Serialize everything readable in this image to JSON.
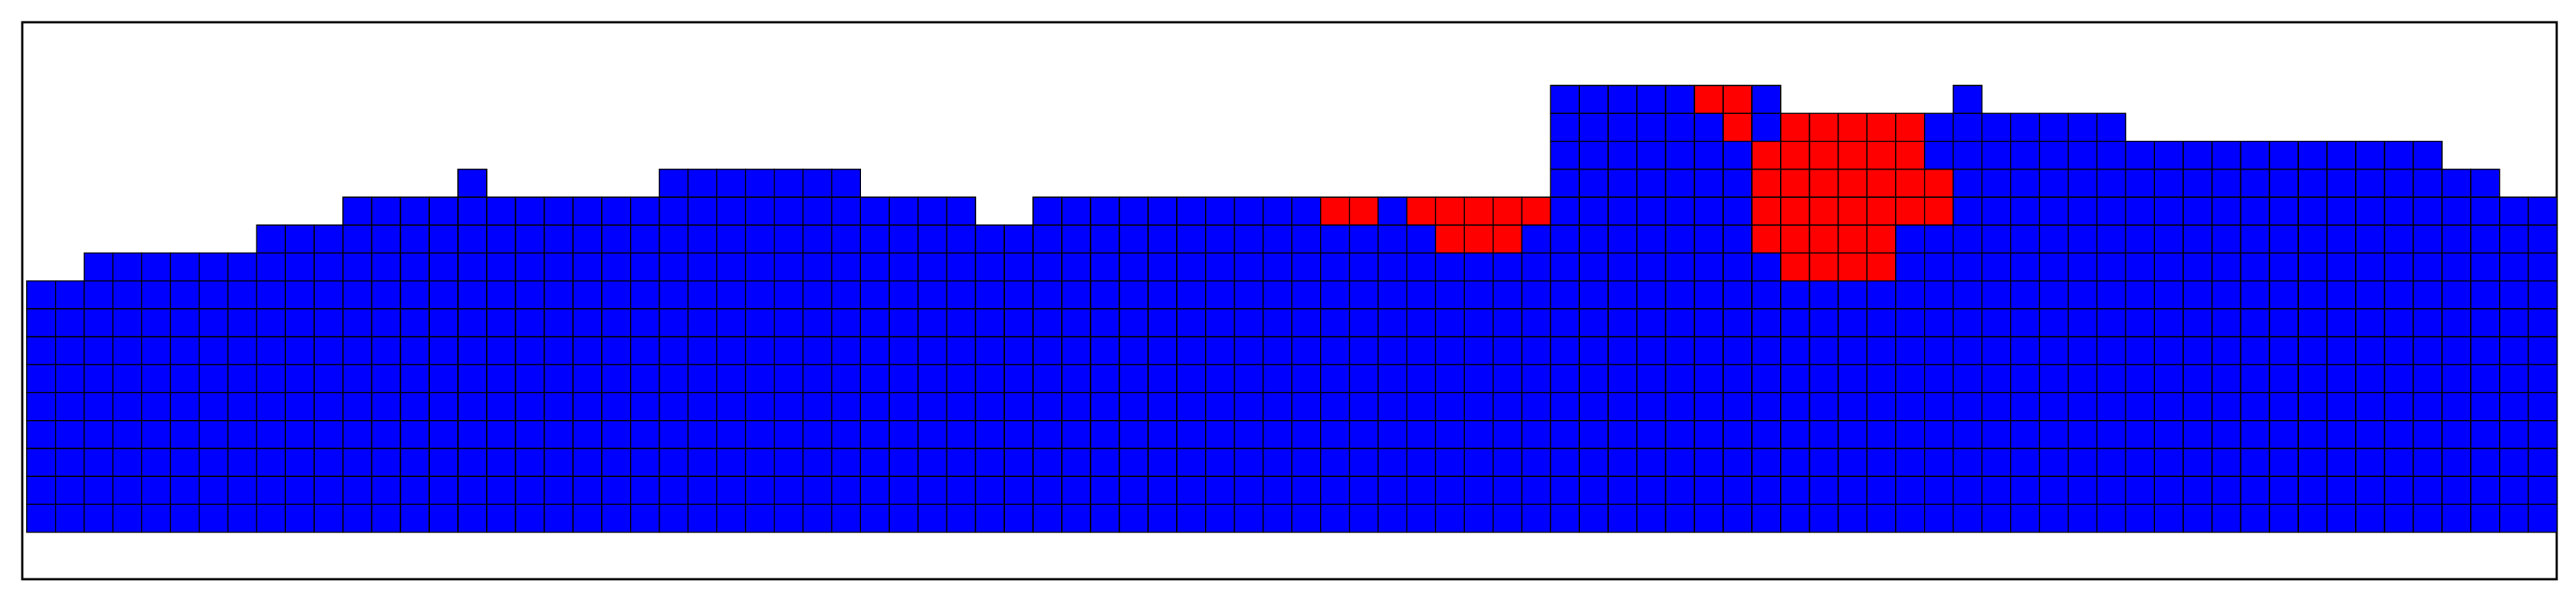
{
  "figure": {
    "kind": "cell grid",
    "columns": 88,
    "rows": 18,
    "colors": {
      "blue": "#0000ff",
      "red": "#ff0000",
      "cell_border": "#000000",
      "frame": "#000000",
      "background": "#ffffff"
    },
    "column_tops": [
      9,
      9,
      8,
      8,
      8,
      8,
      8,
      8,
      7,
      7,
      7,
      6,
      6,
      6,
      6,
      5,
      6,
      6,
      6,
      6,
      6,
      6,
      5,
      5,
      5,
      5,
      5,
      5,
      5,
      6,
      6,
      6,
      6,
      7,
      7,
      6,
      6,
      6,
      6,
      6,
      6,
      6,
      6,
      6,
      6,
      6,
      6,
      6,
      6,
      6,
      6,
      6,
      6,
      2,
      2,
      2,
      2,
      2,
      2,
      2,
      2,
      3,
      3,
      3,
      3,
      3,
      3,
      2,
      3,
      3,
      3,
      3,
      3,
      4,
      4,
      4,
      4,
      4,
      4,
      4,
      4,
      4,
      4,
      4,
      5,
      5,
      6,
      6
    ],
    "red_cells": [
      [
        2,
        58
      ],
      [
        2,
        59
      ],
      [
        3,
        59
      ],
      [
        3,
        61
      ],
      [
        3,
        62
      ],
      [
        3,
        63
      ],
      [
        3,
        64
      ],
      [
        3,
        65
      ],
      [
        4,
        51
      ],
      [
        4,
        52
      ],
      [
        4,
        60
      ],
      [
        4,
        61
      ],
      [
        4,
        62
      ],
      [
        4,
        63
      ],
      [
        4,
        64
      ],
      [
        4,
        65
      ],
      [
        5,
        47
      ],
      [
        5,
        48
      ],
      [
        5,
        49
      ],
      [
        5,
        50
      ],
      [
        5,
        51
      ],
      [
        5,
        60
      ],
      [
        5,
        61
      ],
      [
        5,
        62
      ],
      [
        5,
        63
      ],
      [
        5,
        64
      ],
      [
        5,
        65
      ],
      [
        5,
        66
      ],
      [
        6,
        45
      ],
      [
        6,
        46
      ],
      [
        6,
        48
      ],
      [
        6,
        49
      ],
      [
        6,
        50
      ],
      [
        6,
        51
      ],
      [
        6,
        52
      ],
      [
        6,
        60
      ],
      [
        6,
        61
      ],
      [
        6,
        62
      ],
      [
        6,
        63
      ],
      [
        6,
        64
      ],
      [
        6,
        65
      ],
      [
        6,
        66
      ],
      [
        7,
        49
      ],
      [
        7,
        50
      ],
      [
        7,
        51
      ],
      [
        7,
        60
      ],
      [
        7,
        61
      ],
      [
        7,
        62
      ],
      [
        7,
        63
      ],
      [
        7,
        64
      ],
      [
        8,
        61
      ],
      [
        8,
        62
      ],
      [
        8,
        63
      ],
      [
        8,
        64
      ]
    ]
  }
}
